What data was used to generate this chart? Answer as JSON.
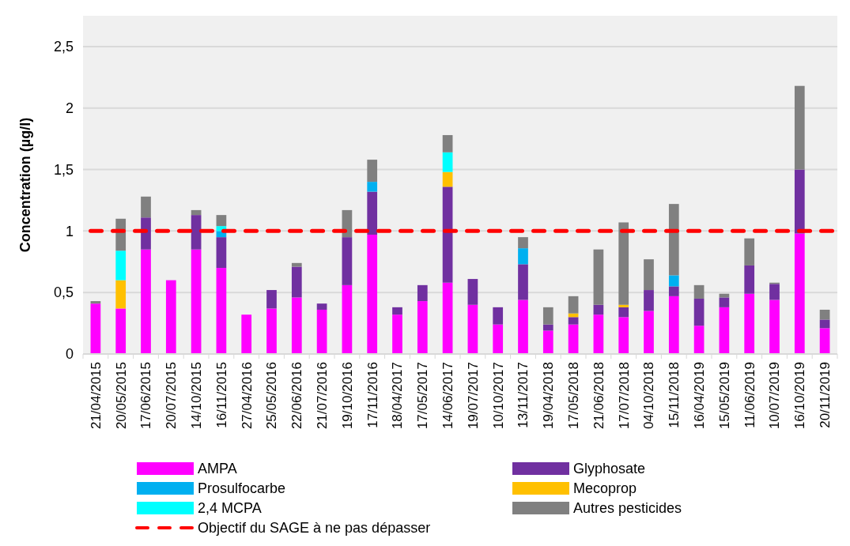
{
  "chart_data": {
    "type": "bar",
    "stacked": true,
    "ylabel": "Concentration (µg/l)",
    "categories": [
      "21/04/2015",
      "20/05/2015",
      "17/06/2015",
      "20/07/2015",
      "14/10/2015",
      "16/11/2015",
      "27/04/2016",
      "25/05/2016",
      "22/06/2016",
      "21/07/2016",
      "19/10/2016",
      "17/11/2016",
      "18/04/2017",
      "17/05/2017",
      "14/06/2017",
      "19/07/2017",
      "10/10/2017",
      "13/11/2017",
      "19/04/2018",
      "17/05/2018",
      "21/06/2018",
      "17/07/2018",
      "04/10/2018",
      "15/11/2018",
      "16/04/2019",
      "15/05/2019",
      "11/06/2019",
      "10/07/2019",
      "16/10/2019",
      "20/11/2019"
    ],
    "series": [
      {
        "name": "AMPA",
        "color": "#ff00ff",
        "values": [
          0.41,
          0.37,
          0.85,
          0.6,
          0.85,
          0.7,
          0.32,
          0.37,
          0.46,
          0.36,
          0.56,
          0.97,
          0.32,
          0.43,
          0.58,
          0.4,
          0.24,
          0.44,
          0.19,
          0.24,
          0.32,
          0.3,
          0.35,
          0.47,
          0.23,
          0.38,
          0.49,
          0.44,
          0.98,
          0.21
        ]
      },
      {
        "name": "Glyphosate",
        "color": "#7030a0",
        "values": [
          null,
          null,
          0.26,
          null,
          0.28,
          0.25,
          null,
          0.15,
          0.25,
          0.05,
          0.39,
          0.35,
          0.06,
          0.13,
          0.78,
          0.21,
          0.14,
          0.29,
          0.05,
          0.06,
          0.08,
          0.08,
          0.17,
          0.08,
          0.22,
          0.08,
          0.23,
          0.13,
          0.52,
          0.07
        ]
      },
      {
        "name": "Prosulfocarbe",
        "color": "#00b0f0",
        "values": [
          null,
          null,
          null,
          null,
          null,
          0.05,
          null,
          null,
          null,
          null,
          null,
          0.08,
          null,
          null,
          null,
          null,
          null,
          0.13,
          null,
          null,
          null,
          null,
          null,
          0.09,
          null,
          null,
          null,
          null,
          null,
          null
        ]
      },
      {
        "name": "Mecoprop",
        "color": "#ffc000",
        "values": [
          null,
          0.23,
          null,
          null,
          null,
          null,
          null,
          null,
          null,
          null,
          null,
          null,
          null,
          null,
          0.12,
          null,
          null,
          null,
          null,
          0.03,
          null,
          0.02,
          null,
          null,
          null,
          null,
          null,
          null,
          null,
          null
        ]
      },
      {
        "name": "2,4 MCPA",
        "color": "#00ffff",
        "values": [
          null,
          0.24,
          null,
          null,
          null,
          0.04,
          null,
          null,
          null,
          null,
          null,
          null,
          null,
          null,
          0.16,
          null,
          null,
          null,
          null,
          null,
          null,
          null,
          null,
          null,
          null,
          null,
          null,
          null,
          null,
          null
        ]
      },
      {
        "name": "Autres pesticides",
        "color": "#808080",
        "values": [
          0.02,
          0.26,
          0.17,
          null,
          0.04,
          0.09,
          null,
          null,
          0.03,
          null,
          0.22,
          0.18,
          null,
          null,
          0.14,
          null,
          null,
          0.09,
          0.14,
          0.14,
          0.45,
          0.67,
          0.25,
          0.58,
          0.11,
          0.03,
          0.22,
          0.01,
          0.68,
          0.08
        ]
      }
    ],
    "ylim": [
      0,
      2.75
    ],
    "yticks": [
      0,
      {
        "value": 0.5,
        "label": "0,5"
      },
      1,
      {
        "value": 1.5,
        "label": "1,5"
      },
      2,
      {
        "value": 2.5,
        "label": "2,5"
      }
    ],
    "grid": "y",
    "legend": "bottom",
    "ref_lines": [
      {
        "axis": "y",
        "value": 1,
        "label": "Objectif du SAGE à ne pas dépasser",
        "color": "#ff0000",
        "line_style": "dashed"
      }
    ]
  }
}
